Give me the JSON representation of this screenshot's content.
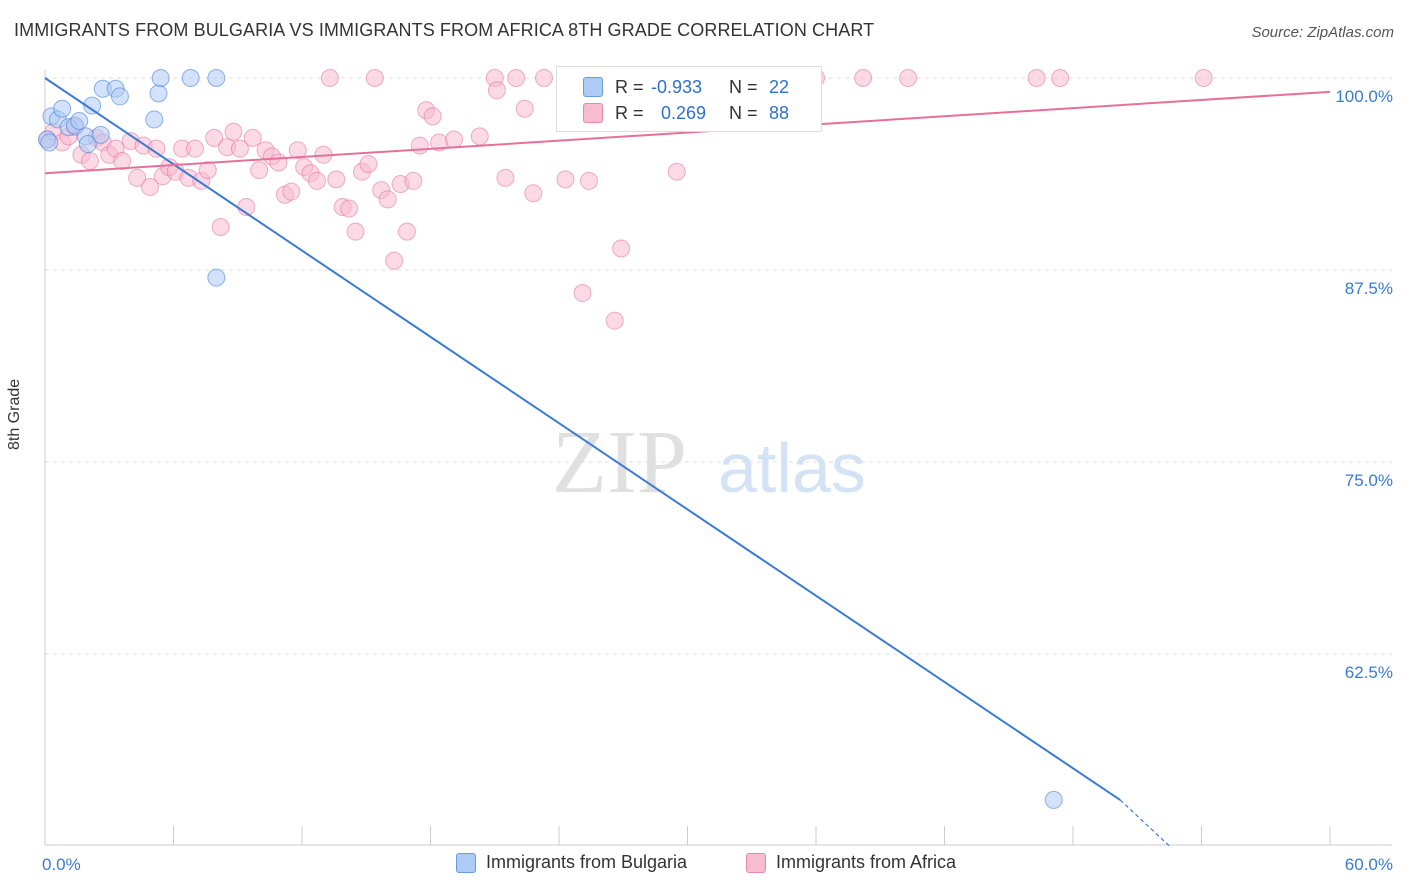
{
  "title": "IMMIGRANTS FROM BULGARIA VS IMMIGRANTS FROM AFRICA 8TH GRADE CORRELATION CHART",
  "source": "Source: ZipAtlas.com",
  "watermark": {
    "zip": "ZIP",
    "atlas": "atlas"
  },
  "colors": {
    "blue": "#3a7bd5",
    "blue_fill": "#aecbf5",
    "pink": "#e6709a",
    "pink_fill": "#f8bcd0",
    "accent_text": "#2f6fd0"
  },
  "legend": {
    "rows": [
      {
        "r_label": "R =",
        "r_value": "-0.933",
        "n_label": "N =",
        "n_value": "22"
      },
      {
        "r_label": "R =",
        "r_value": "0.269",
        "n_label": "N =",
        "n_value": "88"
      }
    ],
    "series": [
      "Immigrants from Bulgaria",
      "Immigrants from Africa"
    ]
  },
  "chart_data": {
    "type": "scatter",
    "title": "IMMIGRANTS FROM BULGARIA VS IMMIGRANTS FROM AFRICA 8TH GRADE CORRELATION CHART",
    "xlabel": "",
    "ylabel": "8th Grade",
    "xlim": [
      0,
      60
    ],
    "ylim": [
      50,
      100.5
    ],
    "x_tick_labels": [
      {
        "value": 0,
        "label": "0.0%"
      },
      {
        "value": 60,
        "label": "60.0%"
      }
    ],
    "y_tick_labels": [
      {
        "value": 100,
        "label": "100.0%"
      },
      {
        "value": 87.5,
        "label": "87.5%"
      },
      {
        "value": 75,
        "label": "75.0%"
      },
      {
        "value": 62.5,
        "label": "62.5%"
      }
    ],
    "series": [
      {
        "name": "Immigrants from Bulgaria",
        "color": "#3a7bd5",
        "fill": "#aecbf5",
        "r": -0.933,
        "n": 22,
        "points": [
          [
            0.1,
            96.0
          ],
          [
            0.3,
            97.5
          ],
          [
            0.6,
            97.3
          ],
          [
            0.8,
            98.0
          ],
          [
            1.1,
            96.8
          ],
          [
            1.4,
            96.9
          ],
          [
            1.6,
            97.2
          ],
          [
            1.9,
            96.2
          ],
          [
            2.0,
            95.7
          ],
          [
            2.2,
            98.2
          ],
          [
            2.6,
            96.3
          ],
          [
            2.7,
            99.3
          ],
          [
            3.3,
            99.3
          ],
          [
            3.5,
            98.8
          ],
          [
            5.1,
            97.3
          ],
          [
            5.3,
            99.0
          ],
          [
            5.4,
            100.0
          ],
          [
            6.8,
            100.0
          ],
          [
            8.0,
            100.0
          ],
          [
            8.0,
            87.0
          ],
          [
            47.1,
            53.0
          ],
          [
            0.2,
            95.8
          ]
        ],
        "trend": {
          "x": [
            0.0,
            50.2
          ],
          "y": [
            100.0,
            53.0
          ],
          "dash_to": [
            52.5,
            50.0
          ]
        }
      },
      {
        "name": "Immigrants from Africa",
        "color": "#e6709a",
        "fill": "#f8bcd0",
        "r": 0.269,
        "n": 88,
        "points": [
          [
            0.1,
            96.0
          ],
          [
            0.4,
            96.5
          ],
          [
            0.8,
            95.8
          ],
          [
            1.1,
            96.2
          ],
          [
            1.4,
            96.8
          ],
          [
            1.7,
            95.0
          ],
          [
            2.1,
            94.6
          ],
          [
            2.4,
            96.1
          ],
          [
            2.7,
            95.8
          ],
          [
            3.0,
            95.0
          ],
          [
            3.3,
            95.4
          ],
          [
            3.6,
            94.6
          ],
          [
            4.0,
            95.9
          ],
          [
            4.3,
            93.5
          ],
          [
            4.6,
            95.6
          ],
          [
            4.9,
            92.9
          ],
          [
            5.2,
            95.4
          ],
          [
            5.5,
            93.6
          ],
          [
            5.8,
            94.2
          ],
          [
            6.1,
            93.9
          ],
          [
            6.4,
            95.4
          ],
          [
            6.7,
            93.5
          ],
          [
            7.0,
            95.4
          ],
          [
            7.3,
            93.3
          ],
          [
            7.6,
            94.0
          ],
          [
            7.9,
            96.1
          ],
          [
            8.2,
            90.3
          ],
          [
            8.5,
            95.5
          ],
          [
            8.8,
            96.5
          ],
          [
            9.1,
            95.4
          ],
          [
            9.4,
            91.6
          ],
          [
            9.7,
            96.1
          ],
          [
            10.0,
            94.0
          ],
          [
            10.3,
            95.3
          ],
          [
            10.6,
            94.9
          ],
          [
            10.9,
            94.5
          ],
          [
            11.2,
            92.4
          ],
          [
            11.5,
            92.6
          ],
          [
            11.8,
            95.3
          ],
          [
            12.1,
            94.2
          ],
          [
            12.4,
            93.8
          ],
          [
            12.7,
            93.3
          ],
          [
            13.0,
            95.0
          ],
          [
            13.3,
            100.0
          ],
          [
            13.6,
            93.4
          ],
          [
            13.9,
            91.6
          ],
          [
            14.2,
            91.5
          ],
          [
            14.5,
            90.0
          ],
          [
            14.8,
            93.9
          ],
          [
            15.1,
            94.4
          ],
          [
            15.4,
            100.0
          ],
          [
            15.7,
            92.7
          ],
          [
            16.0,
            92.1
          ],
          [
            16.3,
            88.1
          ],
          [
            16.6,
            93.1
          ],
          [
            16.9,
            90.0
          ],
          [
            17.2,
            93.3
          ],
          [
            17.5,
            95.6
          ],
          [
            17.8,
            97.9
          ],
          [
            18.1,
            97.5
          ],
          [
            18.4,
            95.8
          ],
          [
            19.1,
            96.0
          ],
          [
            20.3,
            96.2
          ],
          [
            21.0,
            100.0
          ],
          [
            21.1,
            99.2
          ],
          [
            21.5,
            93.5
          ],
          [
            22.0,
            100.0
          ],
          [
            22.4,
            98.0
          ],
          [
            22.8,
            92.5
          ],
          [
            23.3,
            100.0
          ],
          [
            24.3,
            93.4
          ],
          [
            24.4,
            100.0
          ],
          [
            24.9,
            99.3
          ],
          [
            25.1,
            86.0
          ],
          [
            25.4,
            93.3
          ],
          [
            26.3,
            100.0
          ],
          [
            26.6,
            84.2
          ],
          [
            26.9,
            88.9
          ],
          [
            29.5,
            93.9
          ],
          [
            30.5,
            100.0
          ],
          [
            31.4,
            100.0
          ],
          [
            33.0,
            100.0
          ],
          [
            36.0,
            100.0
          ],
          [
            38.2,
            100.0
          ],
          [
            40.3,
            100.0
          ],
          [
            46.3,
            100.0
          ],
          [
            47.4,
            100.0
          ],
          [
            54.1,
            100.0
          ]
        ],
        "trend": {
          "x": [
            0.0,
            60.0
          ],
          "y": [
            93.8,
            99.1
          ]
        }
      }
    ],
    "grid": true
  }
}
